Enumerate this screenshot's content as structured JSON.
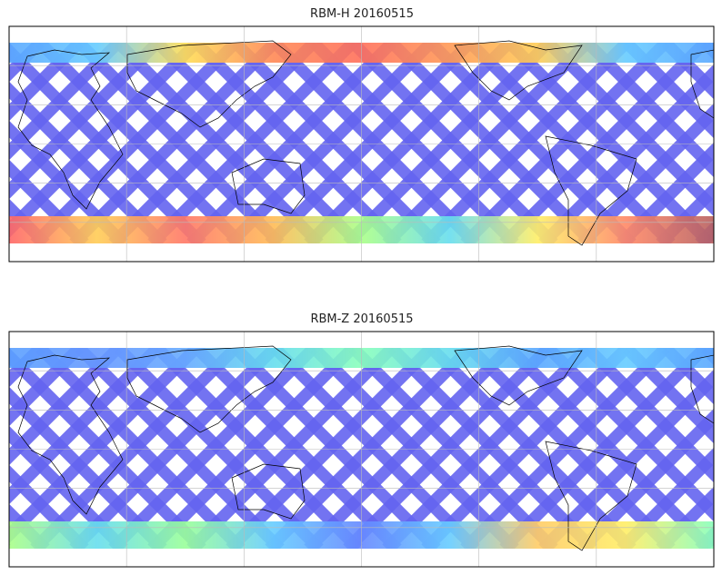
{
  "figure": {
    "panels": [
      {
        "title": "RBM-H 20160515",
        "colormap": "jet",
        "north_band_colors": [
          "#5aa8ff",
          "#66ccff",
          "#ffdd55",
          "#ff8855",
          "#ff6f5a",
          "#ff9955",
          "#ffcc55",
          "#66ccff",
          "#5aa8ff"
        ],
        "south_band_colors": [
          "#ff6666",
          "#ffcc55",
          "#ff7766",
          "#ffbb55",
          "#aaff88",
          "#66ddee",
          "#ffee66",
          "#ff8866",
          "#b86060"
        ],
        "swath_color": "#6464f0"
      },
      {
        "title": "RBM-Z 20160515",
        "colormap": "jet",
        "north_band_colors": [
          "#5aa0ff",
          "#6699ff",
          "#66aaff",
          "#66ddee",
          "#88ffbb",
          "#66ddee",
          "#5aa8ff",
          "#66ccff",
          "#5aa8ff"
        ],
        "south_band_colors": [
          "#aaff88",
          "#66ddee",
          "#99ff99",
          "#66ccff",
          "#6688ff",
          "#66ccff",
          "#ffcc66",
          "#ffee66",
          "#88ffbb"
        ],
        "swath_color": "#6464f0"
      }
    ],
    "map": {
      "projection": "cylindrical",
      "gridlines": true,
      "coastlines": true
    }
  }
}
